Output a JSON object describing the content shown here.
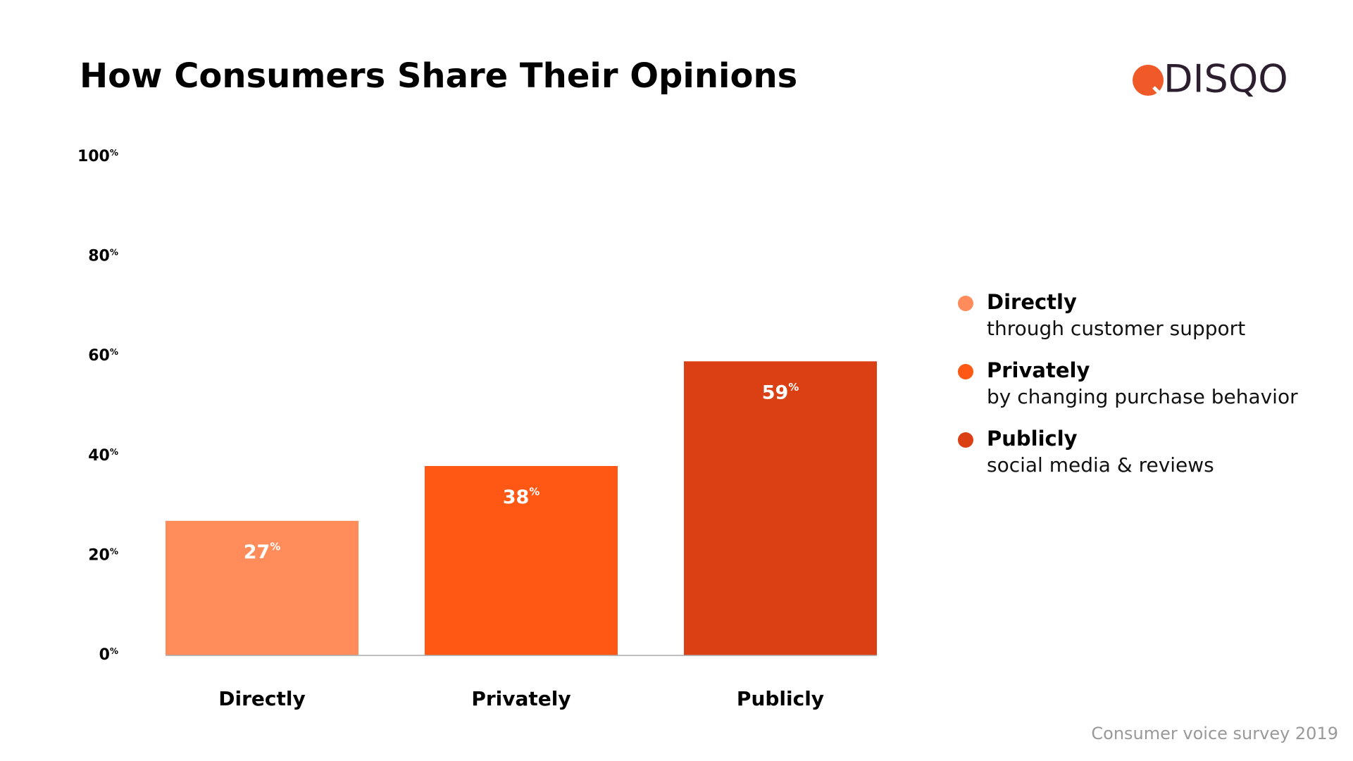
{
  "chart_data": {
    "type": "bar",
    "title": "How Consumers Share Their Opinions",
    "logo": "DISQO",
    "source": "Consumer voice survey 2019",
    "categories": [
      "Directly",
      "Privately",
      "Publicly"
    ],
    "values": [
      27,
      38,
      59
    ],
    "value_labels": [
      "27%",
      "38%",
      "59%"
    ],
    "colors": [
      "#ff8c5a",
      "#ff5714",
      "#db4015"
    ],
    "legend_descriptions": [
      "through customer support",
      "by changing purchase behavior",
      "social media & reviews"
    ],
    "ylim": [
      0,
      100
    ],
    "yticks": [
      {
        "value": 0,
        "label": "0%"
      },
      {
        "value": 20,
        "label": "20%"
      },
      {
        "value": 40,
        "label": "40%"
      },
      {
        "value": 60,
        "label": "60%"
      },
      {
        "value": 80,
        "label": "80%"
      },
      {
        "value": 100,
        "label": "100%"
      }
    ]
  }
}
